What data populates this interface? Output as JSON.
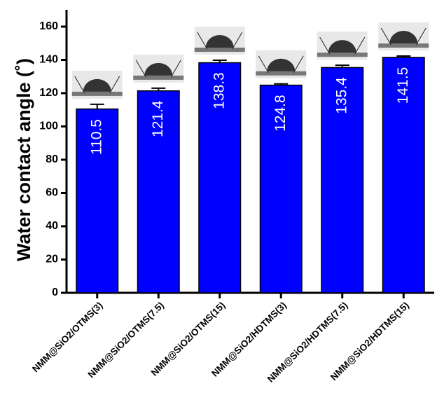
{
  "chart_data": {
    "type": "bar",
    "y_label": "Water contact angle (˚)",
    "categories": [
      "NMM@SiO2/OTMS(3)",
      "NMM@SiO2/OTMS(7.5)",
      "NMM@SiO2/OTMS(15)",
      "NMM@SiO2/HDTMS(3)",
      "NMM@SiO2/HDTMS(7.5)",
      "NMM@SiO2/HDTMS(15)"
    ],
    "values": [
      110.5,
      121.4,
      138.3,
      124.8,
      135.4,
      141.5
    ],
    "errors": [
      2.8,
      1.6,
      1.5,
      0.8,
      1.4,
      0.8
    ],
    "color": "#0000ff",
    "ylim": [
      0,
      160
    ],
    "yticks": [
      0,
      20,
      40,
      60,
      80,
      100,
      120,
      140,
      160
    ]
  }
}
